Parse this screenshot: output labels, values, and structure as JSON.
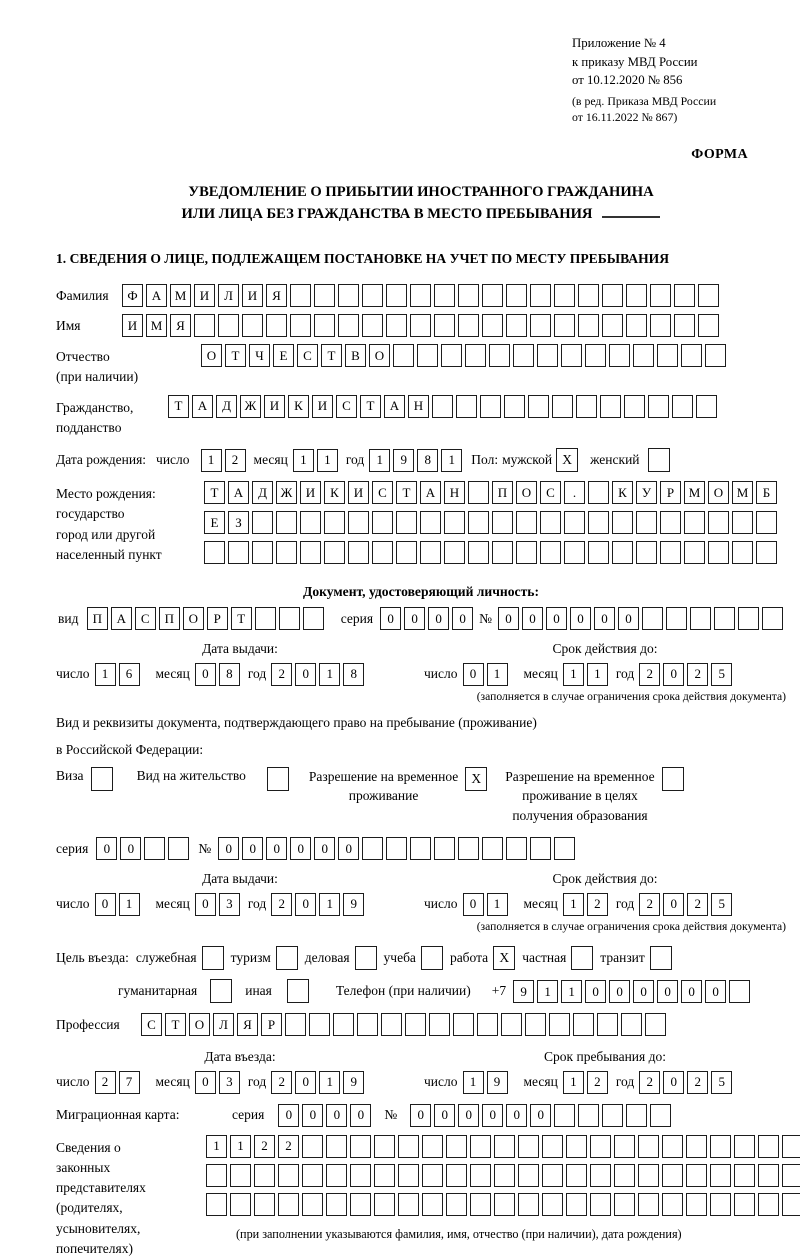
{
  "header": {
    "appendix_lines": [
      "Приложение № 4",
      "к приказу МВД России",
      "от 10.12.2020 № 856"
    ],
    "edition_lines": [
      "(в ред. Приказа МВД России",
      "от 16.11.2022 № 867)"
    ],
    "form_label": "ФОРМА"
  },
  "title": {
    "line1": "УВЕДОМЛЕНИЕ О ПРИБЫТИИ ИНОСТРАННОГО ГРАЖДАНИНА",
    "line2": "ИЛИ ЛИЦА БЕЗ ГРАЖДАНСТВА В МЕСТО ПРЕБЫВАНИЯ"
  },
  "section1_heading": "1. СВЕДЕНИЯ О ЛИЦЕ, ПОДЛЕЖАЩЕМ ПОСТАНОВКЕ НА УЧЕТ ПО МЕСТУ ПРЕБЫВАНИЯ",
  "date_labels": {
    "day": "число",
    "month": "месяц",
    "year": "год"
  },
  "person": {
    "surname": {
      "label": "Фамилия",
      "v": "ФАМИЛИЯ",
      "n": 25
    },
    "given_name": {
      "label": "Имя",
      "v": "ИМЯ",
      "n": 25
    },
    "patronymic": {
      "label_line1": "Отчество",
      "label_line2": "(при наличии)",
      "v": "ОТЧЕСТВО",
      "n": 22
    },
    "citizenship": {
      "label_line1": "Гражданство,",
      "label_line2": "подданство",
      "v": "ТАДЖИКИСТАН",
      "n": 23
    },
    "birth_date": {
      "label": "Дата рождения:",
      "day": {
        "v": "12",
        "n": 2
      },
      "month": {
        "v": "11",
        "n": 2
      },
      "year": {
        "v": "1981",
        "n": 4
      }
    },
    "sex": {
      "label": "Пол:",
      "male_label": "мужской",
      "male": "X",
      "female_label": "женский",
      "female": ""
    },
    "birth_place": {
      "label_lines": [
        "Место рождения:",
        "государство",
        "город или другой",
        "населенный пункт"
      ],
      "row1": {
        "v": "ТАДЖИКИСТАН ПОС. КУРМОМБ",
        "n": 24
      },
      "row2": {
        "v": "ЕЗ",
        "n": 24
      },
      "row3": {
        "v": "",
        "n": 24
      }
    }
  },
  "identity_doc": {
    "heading": "Документ, удостоверяющий личность:",
    "kind_label": "вид",
    "kind": {
      "v": "ПАСПОРТ",
      "n": 10
    },
    "series_label": "серия",
    "series": {
      "v": "0000",
      "n": 4
    },
    "number_label": "№",
    "number": {
      "v": "000000",
      "n": 12
    },
    "issue_heading": "Дата выдачи:",
    "issue": {
      "day": {
        "v": "16",
        "n": 2
      },
      "month": {
        "v": "08",
        "n": 2
      },
      "year": {
        "v": "2018",
        "n": 4
      }
    },
    "expiry_heading": "Срок действия до:",
    "expiry": {
      "day": {
        "v": "01",
        "n": 2
      },
      "month": {
        "v": "11",
        "n": 2
      },
      "year": {
        "v": "2025",
        "n": 4
      }
    },
    "expiry_note": "(заполняется в случае ограничения срока действия документа)"
  },
  "residence_doc": {
    "intro_line1": "Вид и реквизиты документа, подтверждающего право на пребывание (проживание)",
    "intro_line2": "в Российской Федерации:",
    "visa_label": "Виза",
    "visa": "",
    "residence_permit_label": "Вид на жительство",
    "residence_permit": "",
    "temp_permit_label_line1": "Разрешение на временное",
    "temp_permit_label_line2": "проживание",
    "temp_permit": "X",
    "edu_permit_label_line1": "Разрешение на временное",
    "edu_permit_label_line2": "проживание в целях",
    "edu_permit_label_line3": "получения образования",
    "edu_permit": "",
    "series_label": "серия",
    "series": {
      "v": "00",
      "n": 4
    },
    "number_label": "№",
    "number": {
      "v": "000000",
      "n": 15
    },
    "issue_heading": "Дата выдачи:",
    "issue": {
      "day": {
        "v": "01",
        "n": 2
      },
      "month": {
        "v": "03",
        "n": 2
      },
      "year": {
        "v": "2019",
        "n": 4
      }
    },
    "expiry_heading": "Срок действия до:",
    "expiry": {
      "day": {
        "v": "01",
        "n": 2
      },
      "month": {
        "v": "12",
        "n": 2
      },
      "year": {
        "v": "2025",
        "n": 4
      }
    },
    "expiry_note": "(заполняется в случае ограничения срока действия документа)"
  },
  "visit": {
    "purpose_label": "Цель въезда:",
    "options_row1": [
      {
        "label": "служебная",
        "checked": ""
      },
      {
        "label": "туризм",
        "checked": ""
      },
      {
        "label": "деловая",
        "checked": ""
      },
      {
        "label": "учеба",
        "checked": ""
      },
      {
        "label": "работа",
        "checked": "X"
      },
      {
        "label": "частная",
        "checked": ""
      },
      {
        "label": "транзит",
        "checked": ""
      }
    ],
    "options_row2": [
      {
        "label": "гуманитарная",
        "checked": ""
      },
      {
        "label": "иная",
        "checked": ""
      }
    ],
    "phone_label": "Телефон (при наличии)",
    "phone_prefix": "+7",
    "phone": {
      "v": "911000000",
      "n": 10
    },
    "profession_label": "Профессия",
    "profession": {
      "v": "СТОЛЯР",
      "n": 22
    },
    "entry_heading": "Дата въезда:",
    "entry": {
      "day": {
        "v": "27",
        "n": 2
      },
      "month": {
        "v": "03",
        "n": 2
      },
      "year": {
        "v": "2019",
        "n": 4
      }
    },
    "stay_heading": "Срок пребывания до:",
    "stay": {
      "day": {
        "v": "19",
        "n": 2
      },
      "month": {
        "v": "12",
        "n": 2
      },
      "year": {
        "v": "2025",
        "n": 4
      }
    }
  },
  "migration_card": {
    "label": "Миграционная карта:",
    "series_label": "серия",
    "series": {
      "v": "0000",
      "n": 4
    },
    "number_label": "№",
    "number": {
      "v": "000000",
      "n": 11
    }
  },
  "representatives": {
    "label_lines": [
      "Сведения о",
      "законных",
      "представителях",
      "(родителях,",
      "усыновителях,",
      "попечителях)"
    ],
    "row1": {
      "v": "1122",
      "n": 25
    },
    "row2": {
      "v": "",
      "n": 25
    },
    "row3": {
      "v": "",
      "n": 25
    },
    "note": "(при заполнении указываются фамилия, имя, отчество (при наличии), дата рождения)"
  }
}
